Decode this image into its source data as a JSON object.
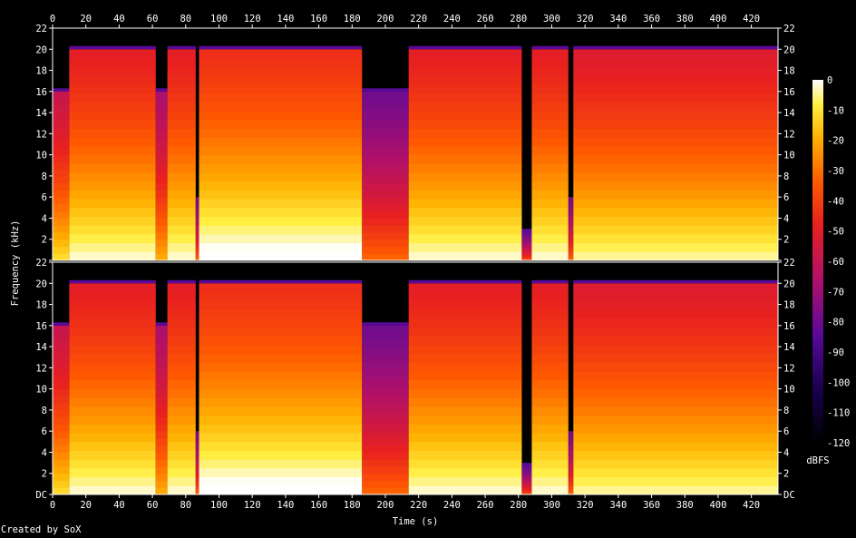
{
  "credit": "Created by SoX",
  "chart_data": {
    "type": "heatmap",
    "title": "",
    "xlabel": "Time (s)",
    "ylabel": "Frequency (kHz)",
    "x_ticks": [
      "0",
      "20",
      "40",
      "60",
      "80",
      "100",
      "120",
      "140",
      "160",
      "180",
      "200",
      "220",
      "240",
      "260",
      "280",
      "300",
      "320",
      "340",
      "360",
      "380",
      "400",
      "420"
    ],
    "y_ticks": [
      "DC",
      "2",
      "4",
      "6",
      "8",
      "10",
      "12",
      "14",
      "16",
      "18",
      "20",
      "22"
    ],
    "xlim": [
      0,
      436
    ],
    "ylim_khz": [
      0,
      22
    ],
    "channels": [
      {
        "name": ""
      },
      {
        "name": ""
      }
    ],
    "colorbar": {
      "label": "dBFS",
      "ticks": [
        "0",
        "-10",
        "-20",
        "-30",
        "-40",
        "-50",
        "-60",
        "-70",
        "-80",
        "-90",
        "-100",
        "-110",
        "-120"
      ],
      "range": [
        -120,
        0
      ]
    },
    "segments": [
      {
        "start": 0,
        "end": 10,
        "max_khz": 16,
        "level": 0.72
      },
      {
        "start": 10,
        "end": 62,
        "max_khz": 20,
        "level": 0.8
      },
      {
        "start": 62,
        "end": 69,
        "max_khz": 16,
        "level": 0.65
      },
      {
        "start": 69,
        "end": 86,
        "max_khz": 20,
        "level": 0.8
      },
      {
        "start": 86,
        "end": 88,
        "max_khz": 6,
        "level": 0.55
      },
      {
        "start": 88,
        "end": 186,
        "max_khz": 20,
        "level": 0.84
      },
      {
        "start": 186,
        "end": 214,
        "max_khz": 16,
        "level": 0.55
      },
      {
        "start": 214,
        "end": 282,
        "max_khz": 20,
        "level": 0.8
      },
      {
        "start": 282,
        "end": 288,
        "max_khz": 3,
        "level": 0.5
      },
      {
        "start": 288,
        "end": 310,
        "max_khz": 20,
        "level": 0.8
      },
      {
        "start": 310,
        "end": 313,
        "max_khz": 6,
        "level": 0.55
      },
      {
        "start": 313,
        "end": 436,
        "max_khz": 20,
        "level": 0.78
      }
    ],
    "notes": "Stereo spectrogram, two channel panels sharing the time axis"
  }
}
